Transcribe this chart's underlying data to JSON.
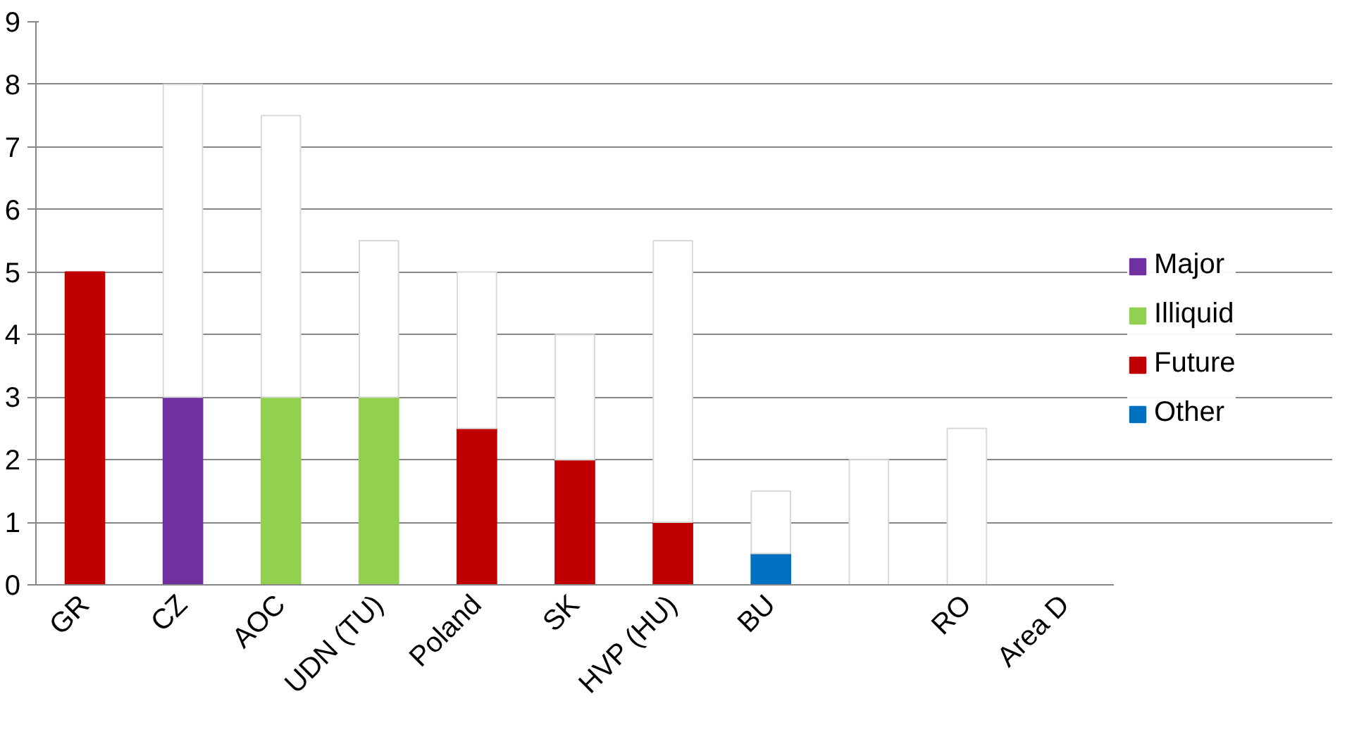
{
  "chart_data": {
    "type": "bar",
    "stacked": true,
    "categories": [
      "GR",
      "CZ",
      "AOC",
      "UDN (TU)",
      "Poland",
      "SK",
      "HVP (HU)",
      "BU",
      null,
      "RO",
      "Area D"
    ],
    "series": [
      {
        "name": "Major",
        "color": "#7030a0",
        "values": [
          null,
          3,
          null,
          null,
          null,
          null,
          null,
          null,
          null,
          null,
          null
        ]
      },
      {
        "name": "Illiquid",
        "color": "#92d050",
        "values": [
          null,
          null,
          3,
          3,
          null,
          null,
          null,
          null,
          null,
          null,
          null
        ]
      },
      {
        "name": "Future",
        "color": "#c00000",
        "values": [
          5,
          null,
          null,
          null,
          2.5,
          2,
          1,
          null,
          null,
          null,
          null
        ]
      },
      {
        "name": "Other",
        "color": "#0070c0",
        "values": [
          null,
          null,
          null,
          null,
          null,
          null,
          null,
          0.5,
          null,
          null,
          null
        ]
      },
      {
        "color": "#ffffff",
        "values": [
          null,
          5,
          4.5,
          2.5,
          2.5,
          2,
          4.5,
          1,
          2,
          2.5,
          null
        ]
      }
    ],
    "ylim": [
      0,
      9
    ],
    "yticks": [
      0,
      1,
      2,
      3,
      4,
      5,
      6,
      7,
      8,
      9
    ],
    "grid": "y",
    "legend": "right"
  }
}
